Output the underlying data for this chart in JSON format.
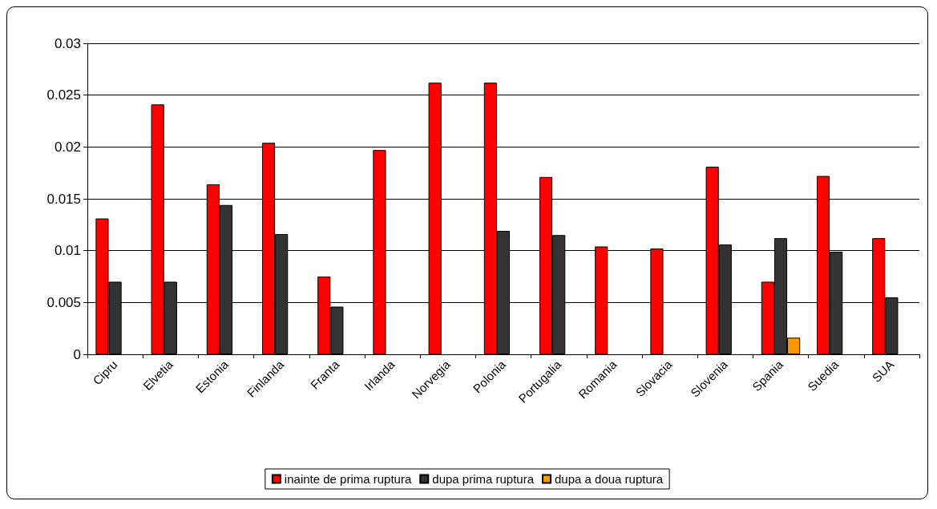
{
  "chart_data": {
    "type": "bar",
    "categories": [
      "Cipru",
      "Elvetia",
      "Estonia",
      "Finlanda",
      "Franta",
      "Irlanda",
      "Norvegia",
      "Polonia",
      "Portugalia",
      "Romania",
      "Slovacia",
      "Slovenia",
      "Spania",
      "Suedia",
      "SUA"
    ],
    "series": [
      {
        "name": "inainte de prima ruptura",
        "color": "#ff0000",
        "values": [
          0.0131,
          0.0241,
          0.0164,
          0.0204,
          0.0075,
          0.0197,
          0.0262,
          0.0262,
          0.0171,
          0.0104,
          0.0102,
          0.0181,
          0.007,
          0.0172,
          0.0112
        ]
      },
      {
        "name": "dupa prima ruptura",
        "color": "#333333",
        "values": [
          0.007,
          0.007,
          0.0144,
          0.0116,
          0.0046,
          null,
          null,
          0.0119,
          0.0115,
          null,
          null,
          0.0106,
          0.0112,
          0.0099,
          0.0055
        ]
      },
      {
        "name": "dupa a doua ruptura",
        "color": "#ff9900",
        "values": [
          null,
          null,
          null,
          null,
          null,
          null,
          null,
          null,
          null,
          null,
          null,
          null,
          0.0016,
          null,
          null
        ]
      }
    ],
    "ylim": [
      0,
      0.03
    ],
    "yticks": [
      0,
      0.005,
      0.01,
      0.015,
      0.02,
      0.025,
      0.03
    ],
    "grid": "y",
    "legend": "bottom"
  }
}
